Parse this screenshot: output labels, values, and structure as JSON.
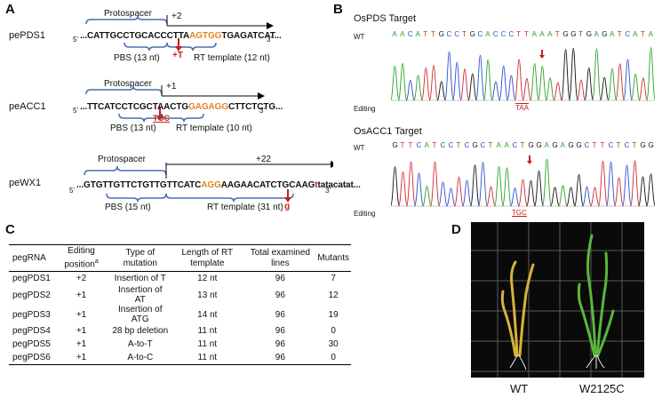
{
  "panels": {
    "a": "A",
    "b": "B",
    "c": "C",
    "d": "D"
  },
  "panel_a": {
    "common": {
      "five_prime": "5'",
      "three_prime": "3'",
      "protospacer": "Protospacer"
    },
    "pePDS1": {
      "name": "pePDS1",
      "position": "+2",
      "seq_pre": "...CATTGCCTGCACCCTTA",
      "seq_pam": "AGTGG",
      "seq_post": "TGAGATCAT...",
      "insertion": "+T",
      "pbs": "PBS (13 nt)",
      "rt": "RT template (12 nt)"
    },
    "peACC1": {
      "name": "peACC1",
      "position": "+1",
      "seq_pre": "...TTCATCCTCGCTAACTG",
      "seq_pam": "GAGAGG",
      "seq_post": "CTTCTCTG...",
      "insertion": "TGC",
      "pbs": "PBS (13 nt)",
      "rt": "RT template (10 nt)"
    },
    "peWX1": {
      "name": "peWX1",
      "position": "+22",
      "seq_pre": "...GTGTTGTTCTGTTGTTCATC",
      "seq_pam": "AGG",
      "seq_mid": "AAGAACATCTGCAAG",
      "seq_edit": "t",
      "seq_post": "tatacatat...",
      "insertion": "g",
      "pbs": "PBS (15 nt)",
      "rt": "RT template (31 nt)"
    }
  },
  "panel_b": {
    "pds": {
      "title": "OsPDS Target",
      "wt_label": "WT",
      "editing_label": "Editing",
      "bases": [
        "A",
        "A",
        "C",
        "A",
        "T",
        "T",
        "G",
        "C",
        "C",
        "T",
        "G",
        "C",
        "A",
        "C",
        "C",
        "C",
        "T",
        "T",
        "A",
        "A",
        "A",
        "T",
        "G",
        "G",
        "T",
        "G",
        "A",
        "G",
        "A",
        "T",
        "C",
        "A",
        "T",
        "A"
      ],
      "edit_bases": "TAA"
    },
    "acc": {
      "title": "OsACC1 Target",
      "wt_label": "WT",
      "editing_label": "Editing",
      "bases": [
        "G",
        "T",
        "T",
        "C",
        "A",
        "T",
        "C",
        "C",
        "T",
        "C",
        "G",
        "C",
        "T",
        "A",
        "A",
        "C",
        "T",
        "G",
        "G",
        "A",
        "G",
        "A",
        "G",
        "G",
        "C",
        "T",
        "T",
        "C",
        "T",
        "C",
        "T",
        "G",
        "G"
      ],
      "edit_bases": "TGC"
    }
  },
  "panel_c": {
    "headers": [
      "pegRNA",
      "Editing position",
      "a",
      "Type of mutation",
      "Length of RT template",
      "Total examined lines",
      "Mutants"
    ],
    "rows": [
      [
        "pegPDS1",
        "+2",
        "Insertion of T",
        "12 nt",
        "96",
        "7"
      ],
      [
        "pegPDS2",
        "+1",
        "Insertion of AT",
        "13 nt",
        "96",
        "12"
      ],
      [
        "pegPDS3",
        "+1",
        "Insertion of ATG",
        "14 nt",
        "96",
        "19"
      ],
      [
        "pegPDS4",
        "+1",
        "28 bp deletion",
        "11 nt",
        "96",
        "0"
      ],
      [
        "pegPDS5",
        "+1",
        "A-to-T",
        "11 nt",
        "96",
        "30"
      ],
      [
        "pegPDS6",
        "+1",
        "A-to-C",
        "11 nt",
        "96",
        "0"
      ]
    ]
  },
  "panel_d": {
    "labels": [
      "WT",
      "W2125C"
    ]
  },
  "colors": {
    "bracket": "#4a6fb0",
    "arrow": "#c81e1e",
    "pam": "#e0862a",
    "A": "#2aa02a",
    "C": "#2a4fd0",
    "G": "#111111",
    "T": "#d02a2a"
  }
}
